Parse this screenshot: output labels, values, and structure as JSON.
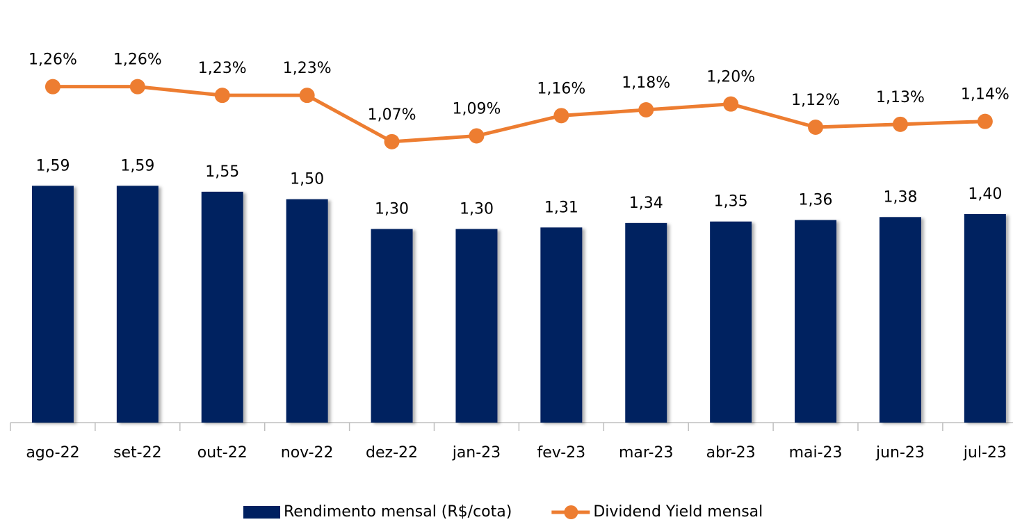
{
  "chart_data": {
    "type": "bar-line",
    "categories": [
      "ago-22",
      "set-22",
      "out-22",
      "nov-22",
      "dez-22",
      "jan-23",
      "fev-23",
      "mar-23",
      "abr-23",
      "mai-23",
      "jun-23",
      "jul-23"
    ],
    "series": [
      {
        "name": "Rendimento mensal (R$/cota)",
        "type": "bar",
        "color": "#002060",
        "values": [
          1.59,
          1.59,
          1.55,
          1.5,
          1.3,
          1.3,
          1.31,
          1.34,
          1.35,
          1.36,
          1.38,
          1.4
        ],
        "value_labels": [
          "1,59",
          "1,59",
          "1,55",
          "1,50",
          "1,30",
          "1,30",
          "1,31",
          "1,34",
          "1,35",
          "1,36",
          "1,38",
          "1,40"
        ]
      },
      {
        "name": "Dividend Yield mensal",
        "type": "line",
        "axis": "y2",
        "color": "#ED7D31",
        "values": [
          1.26,
          1.26,
          1.23,
          1.23,
          1.07,
          1.09,
          1.16,
          1.18,
          1.2,
          1.12,
          1.13,
          1.14
        ],
        "value_labels": [
          "1,26%",
          "1,26%",
          "1,23%",
          "1,23%",
          "1,07%",
          "1,09%",
          "1,16%",
          "1,18%",
          "1,20%",
          "1,12%",
          "1,13%",
          "1,14%"
        ]
      }
    ],
    "ylim": [
      0,
      2.8
    ],
    "y2lim": [
      0.1,
      1.54
    ],
    "legend": "bottom"
  }
}
